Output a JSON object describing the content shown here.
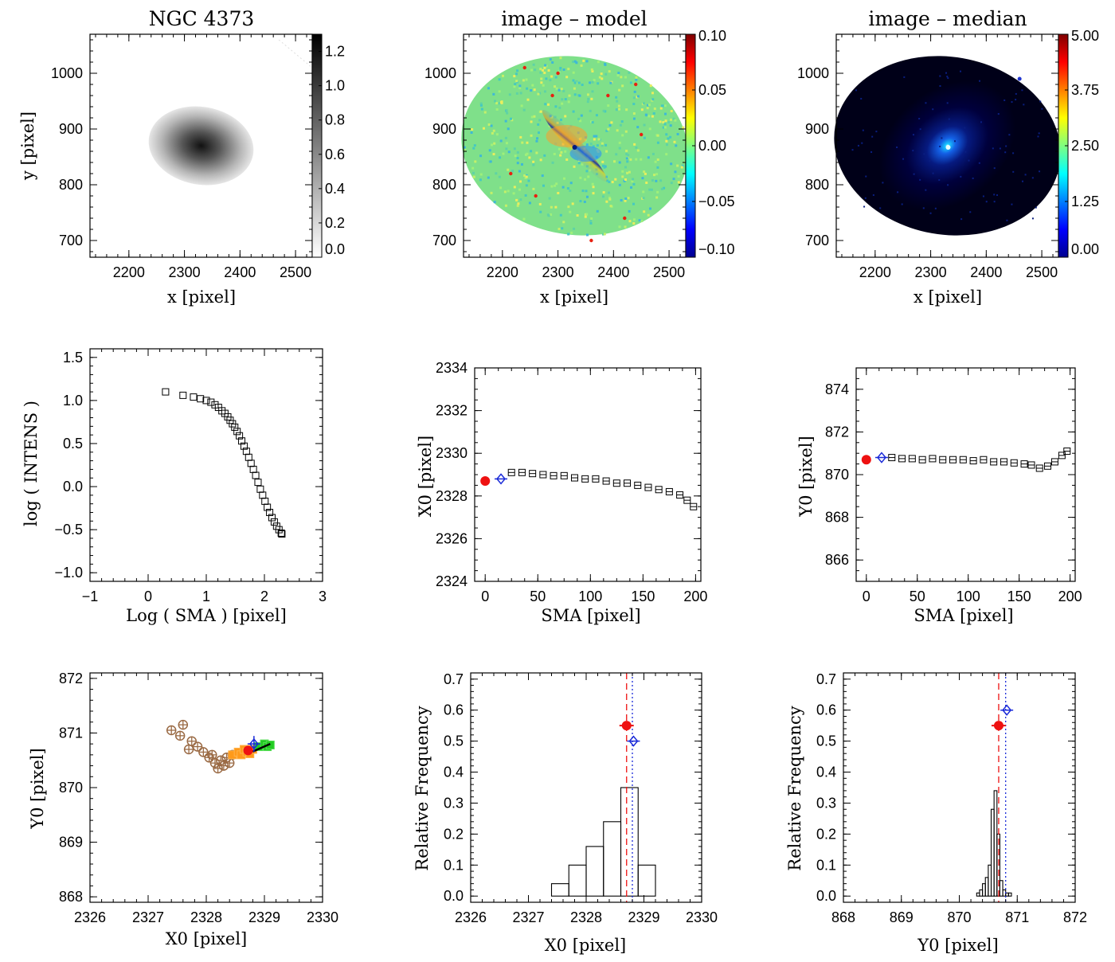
{
  "colors": {
    "frame": "#000000",
    "red": "#ee1111",
    "blue": "#1a2ad8",
    "brown": "#9a6a44",
    "orange": "#ff9a1a",
    "green": "#22cc22"
  },
  "chart_data": [
    {
      "id": "p1",
      "type": "heatmap",
      "title": "NGC 4373",
      "xlabel": "x [pixel]",
      "ylabel": "y [pixel]",
      "xlim": [
        2130,
        2530
      ],
      "ylim": [
        670,
        1070
      ],
      "xticks": [
        "2200",
        "2300",
        "2400",
        "2500"
      ],
      "yticks": [
        "700",
        "800",
        "900",
        "1000"
      ],
      "colorbar": {
        "colormap": "greyscale (white to black)",
        "range": [
          0.0,
          1.3
        ],
        "ticks": [
          "0.0",
          "0.2",
          "0.4",
          "0.6",
          "0.8",
          "1.0",
          "1.2"
        ]
      },
      "ellipse": {
        "center": [
          2330,
          870
        ],
        "semi_major": 95,
        "semi_minor": 70,
        "pa_deg": 55
      }
    },
    {
      "id": "p2",
      "type": "heatmap",
      "title": "image – model",
      "xlabel": "x [pixel]",
      "ylabel": "",
      "xlim": [
        2130,
        2530
      ],
      "ylim": [
        670,
        1070
      ],
      "xticks": [
        "2200",
        "2300",
        "2400",
        "2500"
      ],
      "yticks": [
        "700",
        "800",
        "900",
        "1000"
      ],
      "colorbar": {
        "colormap": "jet",
        "range": [
          -0.1,
          0.1
        ],
        "ticks": [
          "−0.10",
          "−0.05",
          "0.00",
          "0.05",
          "0.10"
        ]
      },
      "ellipse": {
        "center": [
          2330,
          870
        ],
        "semi_major": 205,
        "semi_minor": 160,
        "pa_deg": 55
      }
    },
    {
      "id": "p3",
      "type": "heatmap",
      "title": "image – median",
      "xlabel": "x [pixel]",
      "ylabel": "",
      "xlim": [
        2130,
        2530
      ],
      "ylim": [
        670,
        1070
      ],
      "xticks": [
        "2200",
        "2300",
        "2400",
        "2500"
      ],
      "yticks": [
        "700",
        "800",
        "900",
        "1000"
      ],
      "colorbar": {
        "colormap": "jet",
        "range": [
          0.0,
          5.0
        ],
        "ticks": [
          "0.00",
          "1.25",
          "2.50",
          "3.75",
          "5.00"
        ]
      },
      "ellipse": {
        "center": [
          2330,
          870
        ],
        "semi_major": 205,
        "semi_minor": 160,
        "pa_deg": 55
      }
    },
    {
      "id": "p4",
      "type": "scatter",
      "title": "",
      "xlabel": "Log ( SMA ) [pixel]",
      "ylabel": "log ( INTENS )",
      "xlim": [
        -1,
        3
      ],
      "ylim": [
        -1.1,
        1.6
      ],
      "xticks": [
        "−1",
        "0",
        "1",
        "2",
        "3"
      ],
      "yticks": [
        "−1.0",
        "−0.5",
        "0.0",
        "0.5",
        "1.0",
        "1.5"
      ],
      "points": [
        [
          0.3,
          1.1
        ],
        [
          0.6,
          1.06
        ],
        [
          0.78,
          1.04
        ],
        [
          0.9,
          1.02
        ],
        [
          1.0,
          1.0
        ],
        [
          1.08,
          0.98
        ],
        [
          1.15,
          0.95
        ],
        [
          1.21,
          0.92
        ],
        [
          1.27,
          0.88
        ],
        [
          1.32,
          0.85
        ],
        [
          1.37,
          0.81
        ],
        [
          1.41,
          0.77
        ],
        [
          1.45,
          0.73
        ],
        [
          1.49,
          0.69
        ],
        [
          1.53,
          0.64
        ],
        [
          1.57,
          0.59
        ],
        [
          1.61,
          0.53
        ],
        [
          1.65,
          0.47
        ],
        [
          1.69,
          0.41
        ],
        [
          1.73,
          0.34
        ],
        [
          1.77,
          0.27
        ],
        [
          1.81,
          0.2
        ],
        [
          1.85,
          0.13
        ],
        [
          1.89,
          0.05
        ],
        [
          1.93,
          -0.03
        ],
        [
          1.97,
          -0.1
        ],
        [
          2.01,
          -0.17
        ],
        [
          2.05,
          -0.24
        ],
        [
          2.09,
          -0.3
        ],
        [
          2.13,
          -0.36
        ],
        [
          2.17,
          -0.41
        ],
        [
          2.21,
          -0.46
        ],
        [
          2.25,
          -0.5
        ],
        [
          2.29,
          -0.54
        ],
        [
          2.3,
          -0.55
        ]
      ]
    },
    {
      "id": "p5",
      "type": "scatter",
      "title": "",
      "xlabel": "SMA [pixel]",
      "ylabel": "X0 [pixel]",
      "xlim": [
        -10,
        205
      ],
      "ylim": [
        2324,
        2334
      ],
      "xticks": [
        "0",
        "50",
        "100",
        "150",
        "200"
      ],
      "yticks": [
        "2324",
        "2326",
        "2328",
        "2330",
        "2332",
        "2334"
      ],
      "center_point": [
        0,
        2328.7
      ],
      "reference_point": [
        15,
        2328.8
      ],
      "points": [
        [
          25,
          2329.1
        ],
        [
          35,
          2329.1
        ],
        [
          45,
          2329.05
        ],
        [
          55,
          2329.0
        ],
        [
          65,
          2328.95
        ],
        [
          75,
          2328.95
        ],
        [
          85,
          2328.85
        ],
        [
          95,
          2328.8
        ],
        [
          105,
          2328.8
        ],
        [
          115,
          2328.7
        ],
        [
          125,
          2328.6
        ],
        [
          135,
          2328.6
        ],
        [
          145,
          2328.5
        ],
        [
          155,
          2328.4
        ],
        [
          165,
          2328.3
        ],
        [
          175,
          2328.2
        ],
        [
          185,
          2328.05
        ],
        [
          192,
          2327.8
        ],
        [
          198,
          2327.5
        ]
      ]
    },
    {
      "id": "p6",
      "type": "scatter",
      "title": "",
      "xlabel": "SMA [pixel]",
      "ylabel": "Y0 [pixel]",
      "xlim": [
        -10,
        205
      ],
      "ylim": [
        865,
        875
      ],
      "xticks": [
        "0",
        "50",
        "100",
        "150",
        "200"
      ],
      "yticks": [
        "866",
        "868",
        "870",
        "872",
        "874"
      ],
      "center_point": [
        0,
        870.7
      ],
      "reference_point": [
        15,
        870.8
      ],
      "points": [
        [
          25,
          870.8
        ],
        [
          35,
          870.75
        ],
        [
          45,
          870.75
        ],
        [
          55,
          870.7
        ],
        [
          65,
          870.75
        ],
        [
          75,
          870.7
        ],
        [
          85,
          870.7
        ],
        [
          95,
          870.7
        ],
        [
          105,
          870.65
        ],
        [
          115,
          870.7
        ],
        [
          125,
          870.6
        ],
        [
          135,
          870.6
        ],
        [
          145,
          870.55
        ],
        [
          155,
          870.5
        ],
        [
          162,
          870.45
        ],
        [
          170,
          870.3
        ],
        [
          178,
          870.4
        ],
        [
          185,
          870.6
        ],
        [
          192,
          870.9
        ],
        [
          197,
          871.1
        ]
      ]
    },
    {
      "id": "p7",
      "type": "scatter",
      "title": "",
      "xlabel": "X0 [pixel]",
      "ylabel": "Y0 [pixel]",
      "xlim": [
        2326,
        2330
      ],
      "ylim": [
        867.9,
        872.1
      ],
      "xticks": [
        "2326",
        "2327",
        "2328",
        "2329",
        "2330"
      ],
      "yticks": [
        "868",
        "869",
        "870",
        "871",
        "872"
      ],
      "center_point": [
        2328.72,
        870.68
      ],
      "reference_point": [
        2328.82,
        870.8
      ],
      "brown_points": [
        [
          2327.4,
          871.05
        ],
        [
          2327.6,
          871.15
        ],
        [
          2327.55,
          870.95
        ],
        [
          2327.75,
          870.85
        ],
        [
          2327.7,
          870.7
        ],
        [
          2327.85,
          870.75
        ],
        [
          2327.95,
          870.65
        ],
        [
          2328.05,
          870.55
        ],
        [
          2328.15,
          870.45
        ],
        [
          2328.1,
          870.6
        ],
        [
          2328.25,
          870.5
        ],
        [
          2328.3,
          870.4
        ],
        [
          2328.35,
          870.55
        ],
        [
          2328.2,
          870.35
        ],
        [
          2328.4,
          870.45
        ],
        [
          2328.45,
          870.6
        ]
      ],
      "orange_points": [
        [
          2328.45,
          870.6
        ],
        [
          2328.55,
          870.65
        ],
        [
          2328.6,
          870.6
        ],
        [
          2328.65,
          870.7
        ],
        [
          2328.7,
          870.65
        ],
        [
          2328.75,
          870.62
        ],
        [
          2328.8,
          870.7
        ]
      ],
      "green_points": [
        [
          2328.9,
          870.75
        ],
        [
          2329.0,
          870.8
        ],
        [
          2329.05,
          870.75
        ],
        [
          2329.1,
          870.78
        ]
      ],
      "black_line": [
        [
          2328.8,
          870.66
        ],
        [
          2329.1,
          870.8
        ]
      ]
    },
    {
      "id": "p8",
      "type": "bar",
      "title": "",
      "xlabel": "X0 [pixel]",
      "ylabel": "Relative Frequency",
      "xlim": [
        2326,
        2330
      ],
      "ylim": [
        -0.02,
        0.72
      ],
      "xticks": [
        "2326",
        "2327",
        "2328",
        "2329",
        "2330"
      ],
      "yticks": [
        "0.0",
        "0.1",
        "0.2",
        "0.3",
        "0.4",
        "0.5",
        "0.6",
        "0.7"
      ],
      "bin_edges": [
        2327.4,
        2327.7,
        2328.0,
        2328.3,
        2328.6,
        2328.9,
        2329.2
      ],
      "values": [
        0.04,
        0.1,
        0.16,
        0.24,
        0.35,
        0.1
      ],
      "median_line": 2328.7,
      "reference_line": 2328.8,
      "center_marker": [
        2328.7,
        0.55
      ],
      "reference_marker": [
        2328.82,
        0.5
      ]
    },
    {
      "id": "p9",
      "type": "bar",
      "title": "",
      "xlabel": "Y0 [pixel]",
      "ylabel": "Relative Frequency",
      "xlim": [
        868,
        872
      ],
      "ylim": [
        -0.02,
        0.72
      ],
      "xticks": [
        "868",
        "869",
        "870",
        "871",
        "872"
      ],
      "yticks": [
        "0.0",
        "0.1",
        "0.2",
        "0.3",
        "0.4",
        "0.5",
        "0.6",
        "0.7"
      ],
      "bin_edges": [
        870.3,
        870.35,
        870.4,
        870.45,
        870.5,
        870.55,
        870.6,
        870.65,
        870.7,
        870.75,
        870.8,
        870.85,
        870.9
      ],
      "values": [
        0.01,
        0.02,
        0.04,
        0.06,
        0.1,
        0.28,
        0.34,
        0.2,
        0.05,
        0.02,
        0.01,
        0.01
      ],
      "median_line": 870.68,
      "reference_line": 870.8,
      "center_marker": [
        870.68,
        0.55
      ],
      "reference_marker": [
        870.82,
        0.6
      ]
    }
  ]
}
